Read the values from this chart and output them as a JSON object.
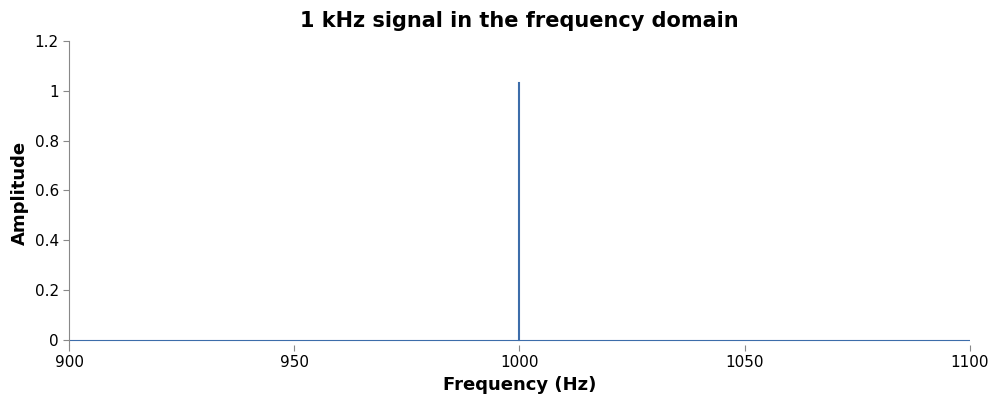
{
  "title": "1 kHz signal in the frequency domain",
  "xlabel": "Frequency (Hz)",
  "ylabel": "Amplitude",
  "xlim": [
    900,
    1100
  ],
  "ylim": [
    -0.02,
    1.2
  ],
  "xticks": [
    900,
    950,
    1000,
    1050,
    1100
  ],
  "ytick_values": [
    0,
    0.2,
    0.4,
    0.6,
    0.8,
    1.0,
    1.2
  ],
  "ytick_labels": [
    "0",
    "0.2",
    "0.4",
    "0.6",
    "0.8",
    "1",
    "1.2"
  ],
  "spike_freq": 1000,
  "spike_amplitude": 1.03,
  "line_color": "#3d6daa",
  "background_color": "#ffffff",
  "title_fontsize": 15,
  "label_fontsize": 13,
  "tick_fontsize": 11,
  "spike_linewidth": 1.5,
  "baseline_linewidth": 0.8,
  "left_spine_color": "#888888",
  "bottom_spine_color": "#888888",
  "tick_color": "#888888",
  "figwidth": 10.0,
  "figheight": 4.05,
  "dpi": 100
}
